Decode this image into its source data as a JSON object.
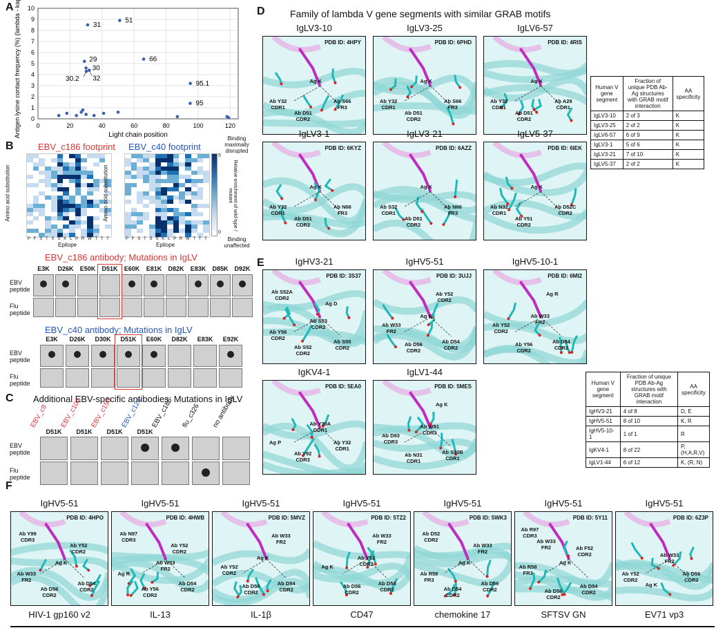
{
  "panelA": {
    "label": "A",
    "ylabel": "Antigen lysine contact frequency (%) (lambda - kappa)",
    "xlabel": "Light chain position",
    "chart_data": {
      "type": "scatter",
      "xlim": [
        0,
        125
      ],
      "ylim": [
        0,
        10
      ],
      "xticks": [
        "0",
        "20",
        "40",
        "60",
        "80",
        "100",
        "120"
      ],
      "yticks": [
        "0",
        "1",
        "2",
        "3",
        "4",
        "5",
        "6",
        "7",
        "8",
        "9",
        "10"
      ],
      "points": [
        {
          "x": 13,
          "y": 0.3,
          "label": ""
        },
        {
          "x": 18,
          "y": 0.5,
          "label": ""
        },
        {
          "x": 24,
          "y": 0.3,
          "label": ""
        },
        {
          "x": 27,
          "y": 0.6,
          "label": ""
        },
        {
          "x": 28,
          "y": 0.8,
          "label": ""
        },
        {
          "x": 30,
          "y": 0.4,
          "label": ""
        },
        {
          "x": 35,
          "y": 0.3,
          "label": ""
        },
        {
          "x": 41,
          "y": 0.5,
          "label": ""
        },
        {
          "x": 50,
          "y": 0.6,
          "label": ""
        },
        {
          "x": 29,
          "y": 5.2,
          "label": "29"
        },
        {
          "x": 30,
          "y": 4.6,
          "label": "30"
        },
        {
          "x": 30.2,
          "y": 4.3,
          "label": "30.2"
        },
        {
          "x": 32,
          "y": 4.4,
          "label": "32"
        },
        {
          "x": 31,
          "y": 8.5,
          "label": "31"
        },
        {
          "x": 51,
          "y": 8.9,
          "label": "51"
        },
        {
          "x": 66,
          "y": 5.4,
          "label": "66"
        },
        {
          "x": 95.1,
          "y": 3.2,
          "label": "95.1"
        },
        {
          "x": 95,
          "y": 1.4,
          "label": "95"
        },
        {
          "x": 87,
          "y": 0.2,
          "label": ""
        },
        {
          "x": 118,
          "y": 0.2,
          "label": ""
        },
        {
          "x": 119,
          "y": 0.1,
          "label": ""
        }
      ]
    }
  },
  "panelB": {
    "label": "B",
    "hm1_title": "EBV_c186 footprint",
    "hm2_title": "EBV_c40 footprint",
    "hm_ylabel": "Amino acid substitution",
    "hm_xlabel": "Epitope",
    "hm_xticks": "P F S T S S K L P R W T T T",
    "cbar_top": "Binding maximally disrupted",
    "cbar_mid": "Relative enrichment of wild-type / mutant",
    "cbar_bottom": "Binding unaffected",
    "cbar_max": "5",
    "cbar_min": "0",
    "blot1_title": "EBV_c186 antibody; Mutations in IgLV",
    "blot1_muts": [
      "E3K",
      "D26K",
      "E50K",
      "D51K",
      "E60K",
      "E81K",
      "D82K",
      "E83K",
      "D85K",
      "D92K"
    ],
    "blot1_ebv_spots": [
      1,
      1,
      0,
      0,
      1,
      1,
      0,
      1,
      1,
      1
    ],
    "blot2_title": "EBV_c40 antibody; Mutations in IgLV",
    "blot2_muts": [
      "E3K",
      "D26K",
      "D30K",
      "D51K",
      "E60K",
      "D82K",
      "E83K",
      "E92K"
    ],
    "blot2_ebv_spots": [
      1,
      1,
      1,
      1,
      1,
      0,
      0,
      1
    ],
    "row_ebv": "EBV peptide",
    "row_flu": "Flu peptide"
  },
  "panelC": {
    "label": "C",
    "title": "Additional EBV-specific antibodies; Mutations in IgLV",
    "antibodies": [
      {
        "name": "EBV_c9",
        "color": "#d33"
      },
      {
        "name": "EBV_c101",
        "color": "#d33"
      },
      {
        "name": "EBV_c150",
        "color": "#d33"
      },
      {
        "name": "EBV_c124",
        "color": "#2255bb"
      },
      {
        "name": "EBV_c186",
        "color": "#111"
      },
      {
        "name": "flu_c326",
        "color": "#111"
      },
      {
        "name": "no antibody",
        "color": "#111"
      }
    ],
    "muts": [
      "D51K",
      "D51K",
      "D51K",
      "D51K",
      "",
      "",
      ""
    ],
    "row_ebv": "EBV peptide",
    "row_flu": "Flu peptide"
  },
  "panelD": {
    "label": "D",
    "title": "Family of lambda V gene segments with similar GRAB motifs",
    "structures": [
      {
        "gene": "IgLV3-10",
        "pdb": "PDB ID: 4HPY",
        "res": [
          "Ag K",
          "Ab Y32\nCDR1",
          "Ab D51\nCDR2",
          "Ab S66\nFR3"
        ]
      },
      {
        "gene": "IgLV3-25",
        "pdb": "PDB ID: 6PHD",
        "res": [
          "Ag K",
          "Ab Y32\nCDR1",
          "Ab D51\nCDR2",
          "Ab S66\nFR3"
        ]
      },
      {
        "gene": "IgLV6-57",
        "pdb": "PDB ID: 4RIS",
        "res": [
          "Ag K",
          "Ab Y32\nCDR1",
          "Ab D51\nCDR2",
          "Ab A29\nCDR1"
        ]
      },
      {
        "gene": "IgLV3-1",
        "pdb": "PDB ID: 6KYZ",
        "res": [
          "Ag K",
          "Ab Y32\nCDR1",
          "Ab D51\nCDR2",
          "Ab N66\nFR3"
        ]
      },
      {
        "gene": "IgLV3-21",
        "pdb": "PDB ID: 6AZZ",
        "res": [
          "Ag K",
          "Ab S32\nCDR1",
          "Ab D51\nCDR2",
          "Ab N66\nFR3"
        ]
      },
      {
        "gene": "IgLV5-37",
        "pdb": "PDB ID: 6IEK",
        "res": [
          "Ag K",
          "Ab N32\nCDR1",
          "Ab Y51\nCDR2",
          "Ab D52C\nCDR2"
        ]
      }
    ],
    "table_header": [
      "Human V gene segment",
      "Fraction of unique PDB Ab-Ag structures with GRAB motif interaction",
      "AA specificity"
    ],
    "table_rows": [
      [
        "IgLV3-10",
        "2 of 3",
        "K"
      ],
      [
        "IgLV3-25",
        "2 of 2",
        "K"
      ],
      [
        "IgLV6-57",
        "6 of 9",
        "K"
      ],
      [
        "IgLV3-1",
        "5 of 6",
        "K"
      ],
      [
        "IgLV3-21",
        "7 of 10",
        "K"
      ],
      [
        "IgLV5-37",
        "2 of 2",
        "K"
      ]
    ]
  },
  "panelE": {
    "label": "E",
    "structures": [
      {
        "gene": "IgHV3-21",
        "pdb": "PDB ID: 3S37",
        "res": [
          "Ab S52A\nCDR2",
          "Ag D",
          "Ab S53\nCDR2",
          "Ab Y56\nCDR2",
          "Ab S52\nCDR2",
          "Ab S55\nCDR2"
        ]
      },
      {
        "gene": "IgHV5-51",
        "pdb": "PDB ID: 3UJJ",
        "res": [
          "Ab Y52\nCDR2",
          "Ag K",
          "Ab W33\nFR2",
          "Ab D56\nCDR2",
          "Ab D54\nCDR2"
        ]
      },
      {
        "gene": "IgHV5-10-1",
        "pdb": "PDB ID: 6MI2",
        "res": [
          "Ag R",
          "Ab W33\nFR2",
          "Ab Y52\nCDR2",
          "Ab Y56\nCDR2",
          "Ab D54\nCDR2"
        ]
      },
      {
        "gene": "IgKV4-1",
        "pdb": "PDB ID: 5EA0",
        "res": [
          "Ab Y30A\nCDR1",
          "Ag P",
          "Ab Y92\nCDR3",
          "Ab Y32\nCDR1"
        ]
      },
      {
        "gene": "IgLV1-44",
        "pdb": "PDB ID: 5MES",
        "res": [
          "Ag K",
          "Ab W91\nCDR3",
          "Ab D93\nCDR3",
          "Ab N31\nCDR1",
          "Ab S30B\nCDR1"
        ]
      }
    ],
    "table_header": [
      "Human V gene segment",
      "Fraction of unique PDB Ab-Ag structures with GRAB motif interaction",
      "AA specificity"
    ],
    "table_rows": [
      [
        "IgHV3-21",
        "4 of 8",
        "D, E"
      ],
      [
        "IgHV5-51",
        "8 of 10",
        "K, R"
      ],
      [
        "IgHV5-10-1",
        "1 of 1",
        "R"
      ],
      [
        "IgKV4-1",
        "8 of 22",
        "P,(H,A,R,V)"
      ],
      [
        "IgLV1-44",
        "6 of 12",
        "K, (R, N)"
      ]
    ]
  },
  "panelF": {
    "label": "F",
    "structures": [
      {
        "gene": "IgHV5-51",
        "pdb": "PDB ID: 4HPO",
        "antigen": "HIV-1 gp160 v2",
        "res": [
          "Ab Y99\nCDR3",
          "Ab Y52\nCDR2",
          "Ag K",
          "Ab W33\nFR2",
          "Ab D56\nCDR2",
          "Ab D54\nCDR2"
        ]
      },
      {
        "gene": "IgHV5-51",
        "pdb": "PDB ID: 4HWB",
        "antigen": "IL-13",
        "res": [
          "Ab N97\nCDR3",
          "Ab Y52\nCDR2",
          "Ab W33\nFR2",
          "Ag R",
          "Ab Y56\nCDR2",
          "Ab D54\nCDR2"
        ]
      },
      {
        "gene": "IgHV5-51",
        "pdb": "PDB ID: 5MVZ",
        "antigen": "IL-1β",
        "res": [
          "Ab W33\nFR2",
          "Ag K",
          "Ab Y52\nCDR2",
          "Ab D56\nCDR2",
          "Ab D54\nCDR2"
        ]
      },
      {
        "gene": "IgHV5-51",
        "pdb": "PDB ID: 5TZ2",
        "antigen": "CD47",
        "res": [
          "Ab W33\nFR2",
          "Ab Y52\nCDR2",
          "Ag K",
          "Ab D56\nCDR2",
          "Ab D54\nCDR2"
        ]
      },
      {
        "gene": "IgHV5-51",
        "pdb": "PDB ID: 5WK3",
        "antigen": "chemokine 17",
        "res": [
          "Ab D52\nCDR2",
          "Ab W33\nFR2",
          "Ag K",
          "Ab R58\nFR3",
          "Ab D54\nCDR2",
          "Ab D56\nCDR2"
        ]
      },
      {
        "gene": "IgHV5-51",
        "pdb": "PDB ID: 5Y11",
        "antigen": "SFTSV GN",
        "res": [
          "Ab R97\nCDR3",
          "Ab W33\nFR2",
          "Ab F52\nCDR2",
          "Ab R58\nFR3",
          "Ag K",
          "Ab D56\nCDR2",
          "Ab D54\nCDR2"
        ]
      },
      {
        "gene": "IgHV5-51",
        "pdb": "PDB ID: 6Z3P",
        "antigen": "EV71 vp3",
        "res": [
          "Ab W33\nFR2",
          "Ab Y52\nCDR2",
          "Ag K",
          "Ab D56\nCDR2"
        ]
      }
    ]
  }
}
